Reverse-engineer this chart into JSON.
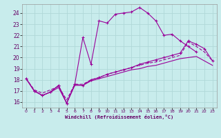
{
  "xlabel": "Windchill (Refroidissement éolien,°C)",
  "background_color": "#c8ecec",
  "grid_color": "#b0d8d8",
  "line_color": "#990099",
  "xlim": [
    -0.5,
    23.5
  ],
  "ylim": [
    15.5,
    24.8
  ],
  "yticks": [
    16,
    17,
    18,
    19,
    20,
    21,
    22,
    23,
    24
  ],
  "xticks": [
    0,
    1,
    2,
    3,
    4,
    5,
    6,
    7,
    8,
    9,
    10,
    11,
    12,
    13,
    14,
    15,
    16,
    17,
    18,
    19,
    20,
    21,
    22,
    23
  ],
  "line1_x": [
    0,
    1,
    2,
    3,
    4,
    5,
    6,
    7,
    8,
    9,
    10,
    11,
    12,
    13,
    14,
    15,
    16,
    17,
    18,
    19,
    20,
    21
  ],
  "line1_y": [
    18.1,
    17.0,
    16.6,
    16.9,
    17.5,
    15.9,
    17.6,
    21.8,
    19.4,
    23.3,
    23.1,
    23.9,
    24.0,
    24.1,
    24.5,
    24.0,
    23.3,
    22.0,
    22.1,
    21.5,
    21.0,
    20.5
  ],
  "line2_x": [
    0,
    1,
    2,
    3,
    4,
    5,
    6,
    7,
    8,
    9,
    10,
    11,
    12,
    13,
    14,
    15,
    16,
    17,
    18,
    19,
    20,
    21,
    22,
    23
  ],
  "line2_y": [
    18.1,
    17.0,
    16.6,
    16.9,
    17.5,
    15.9,
    17.6,
    17.5,
    18.0,
    18.2,
    18.5,
    18.7,
    18.9,
    19.1,
    19.4,
    19.6,
    19.8,
    20.0,
    20.2,
    20.4,
    21.5,
    21.2,
    20.8,
    19.7
  ],
  "line3_x": [
    0,
    1,
    2,
    3,
    4,
    5,
    6,
    7,
    8,
    9,
    10,
    11,
    12,
    13,
    14,
    15,
    16,
    17,
    18,
    19,
    20,
    21,
    22,
    23
  ],
  "line3_y": [
    18.1,
    17.1,
    16.8,
    17.1,
    17.4,
    16.2,
    17.6,
    17.6,
    18.0,
    18.2,
    18.5,
    18.7,
    18.9,
    19.1,
    19.3,
    19.5,
    19.6,
    19.8,
    20.0,
    20.2,
    21.4,
    21.0,
    20.5,
    19.7
  ],
  "line4_x": [
    0,
    1,
    2,
    3,
    4,
    5,
    6,
    7,
    8,
    9,
    10,
    11,
    12,
    13,
    14,
    15,
    16,
    17,
    18,
    19,
    20,
    21,
    22,
    23
  ],
  "line4_y": [
    18.1,
    17.0,
    16.6,
    16.9,
    17.3,
    15.9,
    17.5,
    17.5,
    17.9,
    18.1,
    18.3,
    18.5,
    18.7,
    18.9,
    19.0,
    19.2,
    19.3,
    19.5,
    19.7,
    19.9,
    20.0,
    20.1,
    19.7,
    19.3
  ]
}
